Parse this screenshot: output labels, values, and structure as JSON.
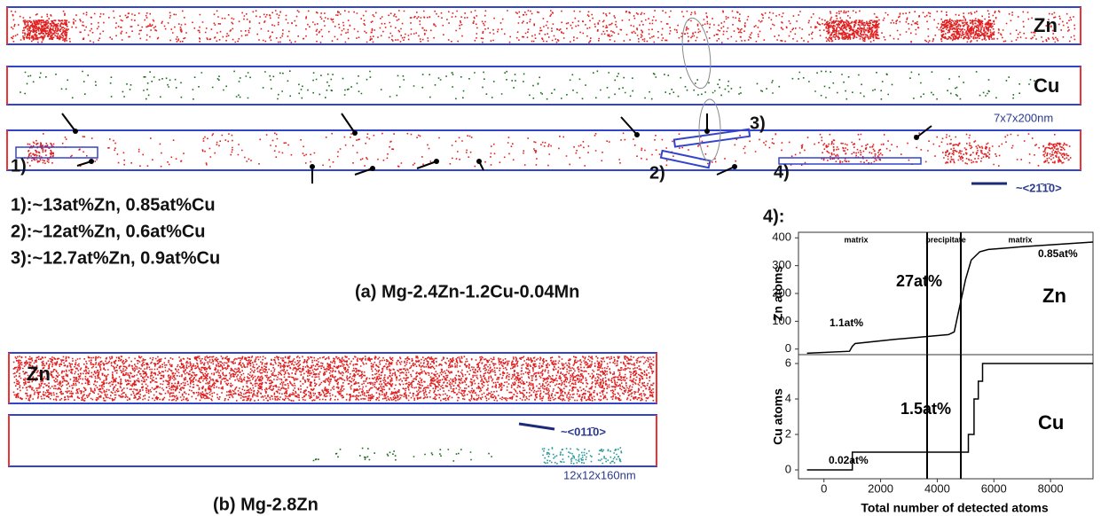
{
  "panel_a": {
    "zn_label": "Zn",
    "cu_label": "Cu",
    "box_size": "7x7x200nm",
    "direction": "~<21̄1̄0>",
    "markers": [
      "1)",
      "2)",
      "3)",
      "4)"
    ],
    "compositions": [
      "1):~13at%Zn, 0.85at%Cu",
      "2):~12at%Zn, 0.6at%Cu",
      "3):~12.7at%Zn, 0.9at%Cu"
    ],
    "caption": "(a) Mg-2.4Zn-1.2Cu-0.04Mn",
    "profile_label": "4):"
  },
  "panel_b": {
    "zn_label": "Zn",
    "direction": "~<011̄0>",
    "box_size": "12x12x160nm",
    "caption": "(b) Mg-2.8Zn"
  },
  "chart_data": [
    {
      "type": "line",
      "ylabel": "Zn atoms",
      "color": "#000000",
      "x": [
        -600,
        900,
        1000,
        1100,
        2500,
        4400,
        4600,
        4700,
        5000,
        5200,
        5500,
        5800,
        7000,
        9500
      ],
      "values": [
        -15,
        -8,
        10,
        20,
        35,
        52,
        62,
        110,
        250,
        320,
        350,
        358,
        368,
        385
      ],
      "xlim": [
        -900,
        9500
      ],
      "ylim": [
        -20,
        420
      ],
      "yticks": [
        0,
        100,
        200,
        300,
        400
      ],
      "annotations": [
        "matrix",
        "precipitate",
        "matrix",
        "27at%",
        "0.85at%",
        "1.1at%",
        "Zn"
      ]
    },
    {
      "type": "line",
      "ylabel": "Cu atoms",
      "xlabel": "Total number of detected atoms",
      "color": "#000000",
      "x": [
        -600,
        1000,
        1000,
        5100,
        5100,
        5300,
        5300,
        5450,
        5450,
        5600,
        5600,
        9500
      ],
      "values": [
        0,
        0,
        1,
        1,
        2,
        2,
        4,
        4,
        5,
        5,
        6,
        6
      ],
      "xlim": [
        -900,
        9500
      ],
      "ylim": [
        -0.5,
        6.5
      ],
      "yticks": [
        0,
        2,
        4,
        6
      ],
      "xticks": [
        0,
        2000,
        4000,
        6000,
        8000
      ],
      "annotations": [
        "1.5at%",
        "0.02at%",
        "Cu"
      ]
    }
  ]
}
